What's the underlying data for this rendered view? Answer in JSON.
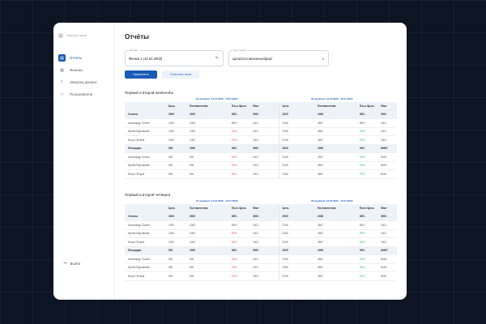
{
  "sidebar": {
    "logo": "Свернуть меню",
    "items": [
      {
        "label": "Отчёты",
        "icon": "report-icon"
      },
      {
        "label": "Фильмы",
        "icon": "film-icon"
      },
      {
        "label": "Загрузка данных",
        "icon": "upload-icon"
      },
      {
        "label": "Пользователи",
        "icon": "users-icon"
      }
    ],
    "logout": "Выйти"
  },
  "page": {
    "title": "Отчёты"
  },
  "filters": {
    "film_label": "Фильм*",
    "film_value": "Фильм 1 (10.02.2002)",
    "type_label": "Тип отчёта*",
    "type_value": "Цель/поставленные/факт",
    "apply": "Применить",
    "clear": "Очистить поля"
  },
  "colors": {
    "accent": "#1a5bb8",
    "bad": "#e0506a",
    "good": "#2fb36b"
  },
  "sections": [
    {
      "title": "Первый и второй weekend'ы",
      "date1": "01 weekend: 13.07.2023 - 16.07.2023",
      "date2": "02 weekend: 13.07.2023 - 16.07.2023",
      "headers": [
        "",
        "Цель",
        "Поставленная",
        "Посл./Цель",
        "Факт",
        "Цель",
        "Поставленная",
        "Посл./Цель",
        "Факт"
      ],
      "rows": [
        {
          "g": 1,
          "c": [
            "Сеансы",
            "3000",
            "3000",
            "88%",
            "3000",
            "2525",
            "2456",
            "88%",
            "3000"
          ]
        },
        {
          "c": [
            "Александр Сычев",
            "1000",
            "1000",
            "86%",
            "1001",
            "2345",
            "4567",
            "86%",
            "1001"
          ]
        },
        {
          "c": [
            "Ирина Мурзаьева",
            "1000",
            "1000",
            "50%",
            "1001",
            "2345",
            "4567",
            "93%",
            "1001"
          ],
          "s": [
            "",
            "red",
            "green"
          ]
        },
        {
          "c": [
            "Игорь Петров",
            "1000",
            "1000",
            "50%",
            "1001",
            "2345",
            "4567",
            "93%",
            "1001"
          ],
          "s": [
            "",
            "red",
            "green"
          ]
        },
        {
          "g": 1,
          "c": [
            "Площадки",
            "500",
            "1500",
            "88%",
            "3000",
            "2525",
            "2456",
            "96%",
            "84567"
          ]
        },
        {
          "c": [
            "Александр Сычев",
            "500",
            "500",
            "50%",
            "1001",
            "2345",
            "4567",
            "93%",
            "5445"
          ],
          "s": [
            "",
            "red",
            "green"
          ]
        },
        {
          "c": [
            "Ирина Мурзаьева",
            "500",
            "500",
            "50%",
            "1001",
            "2345",
            "4567",
            "93%",
            "5445"
          ],
          "s": [
            "",
            "red",
            "green"
          ]
        },
        {
          "c": [
            "Игорь Петров",
            "500",
            "500",
            "50%",
            "1001",
            "2345",
            "4567",
            "93%",
            "5445"
          ],
          "s": [
            "",
            "red",
            "green"
          ]
        }
      ]
    },
    {
      "title": "Первый и второй четверги",
      "date1": "01 weekend: 13.07.2023 - 16.07.2023",
      "date2": "02 weekend: 13.07.2023 - 16.07.2023",
      "headers": [
        "",
        "Цель",
        "Поставленная",
        "Посл./Цель",
        "Факт",
        "Цель",
        "Поставленная",
        "Посл./Цель",
        "Факт"
      ],
      "rows": [
        {
          "g": 1,
          "c": [
            "Сеансы",
            "3000",
            "3000",
            "88%",
            "3000",
            "2525",
            "2456",
            "88%",
            "3000"
          ]
        },
        {
          "c": [
            "Александр Сычев",
            "1000",
            "1000",
            "86%",
            "1001",
            "2345",
            "4567",
            "86%",
            "1001"
          ]
        },
        {
          "c": [
            "Ирина Мурзаьева",
            "1000",
            "1000",
            "50%",
            "1001",
            "2345",
            "4567",
            "93%",
            "1001"
          ],
          "s": [
            "",
            "red",
            "green"
          ]
        },
        {
          "c": [
            "Игорь Петров",
            "1000",
            "1000",
            "50%",
            "1001",
            "2345",
            "4567",
            "93%",
            "1001"
          ],
          "s": [
            "",
            "red",
            "green"
          ]
        },
        {
          "g": 1,
          "c": [
            "Площадки",
            "500",
            "1500",
            "88%",
            "3000",
            "2525",
            "2456",
            "96%",
            "84567"
          ]
        },
        {
          "c": [
            "Александр Сычев",
            "500",
            "500",
            "50%",
            "1001",
            "2345",
            "4567",
            "93%",
            "5445"
          ],
          "s": [
            "",
            "red",
            "green"
          ]
        },
        {
          "c": [
            "Ирина Мурзаьева",
            "500",
            "500",
            "50%",
            "1001",
            "2345",
            "4567",
            "93%",
            "5445"
          ],
          "s": [
            "",
            "red",
            "green"
          ]
        },
        {
          "c": [
            "Игорь Петров",
            "500",
            "500",
            "50%",
            "1001",
            "2345",
            "4567",
            "93%",
            "5445"
          ],
          "s": [
            "",
            "red",
            "green"
          ]
        }
      ]
    }
  ]
}
